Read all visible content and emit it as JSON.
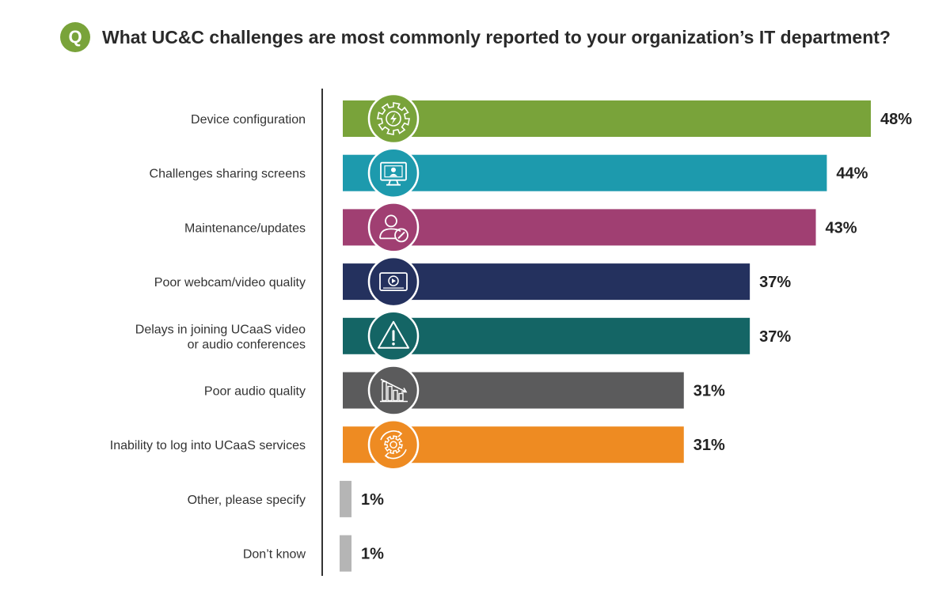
{
  "header": {
    "badge": "Q",
    "title": "What UC&C challenges are most commonly reported to your organization’s IT department?"
  },
  "chart_data": {
    "type": "bar",
    "orientation": "horizontal",
    "title": "What UC&C challenges are most commonly reported to your organization’s IT department?",
    "xlabel": "",
    "ylabel": "",
    "xlim": [
      0,
      48
    ],
    "grid": false,
    "legend": "none",
    "categories": [
      [
        "Device configuration"
      ],
      [
        "Challenges sharing screens"
      ],
      [
        "Maintenance/updates"
      ],
      [
        "Poor webcam/video quality"
      ],
      [
        "Delays in joining UCaaS video",
        "or audio conferences"
      ],
      [
        "Poor audio quality"
      ],
      [
        "Inability to log into UCaaS services"
      ],
      [
        "Other, please specify"
      ],
      [
        "Don’t know"
      ]
    ],
    "values": [
      48,
      44,
      43,
      37,
      37,
      31,
      31,
      1,
      1
    ],
    "value_labels": [
      "48%",
      "44%",
      "43%",
      "37%",
      "37%",
      "31%",
      "31%",
      "1%",
      "1%"
    ],
    "colors": [
      "#79a33a",
      "#1d9aad",
      "#a03f72",
      "#24315e",
      "#146565",
      "#5b5b5c",
      "#ee8b22",
      "#b5b5b5",
      "#b5b5b5"
    ],
    "icons": [
      "gear-lightning-icon",
      "monitor-user-icon",
      "user-wrench-icon",
      "video-play-icon",
      "warning-triangle-icon",
      "declining-bars-icon",
      "gear-refresh-icon",
      "",
      ""
    ]
  }
}
